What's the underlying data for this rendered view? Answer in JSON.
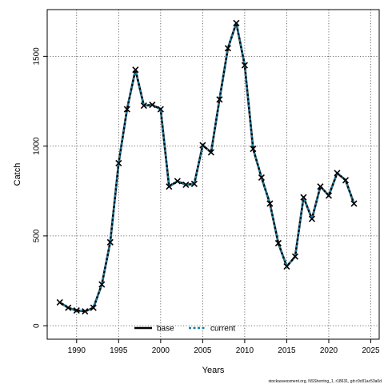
{
  "chart_data": {
    "type": "line",
    "title": "",
    "xlabel": "Years",
    "ylabel": "Catch",
    "xlim": [
      1986.5,
      2026.0
    ],
    "ylim": [
      -75,
      1760
    ],
    "x_ticks": [
      1990,
      1995,
      2000,
      2005,
      2010,
      2015,
      2020,
      2025
    ],
    "y_ticks": [
      0,
      500,
      1000,
      1500
    ],
    "grid": true,
    "legend_position": "bottom-center",
    "x": [
      1988,
      1989,
      1990,
      1991,
      1992,
      1993,
      1994,
      1995,
      1996,
      1997,
      1998,
      1999,
      2000,
      2001,
      2002,
      2003,
      2004,
      2005,
      2006,
      2007,
      2008,
      2009,
      2010,
      2011,
      2012,
      2013,
      2014,
      2015,
      2016,
      2017,
      2018,
      2019,
      2020,
      2021,
      2022,
      2023
    ],
    "series": [
      {
        "name": "base",
        "color": "#000000",
        "style": "solid",
        "marker": "x",
        "values": [
          130,
          100,
          85,
          80,
          100,
          230,
          465,
          905,
          1205,
          1425,
          1225,
          1230,
          1205,
          775,
          805,
          785,
          790,
          1005,
          965,
          1260,
          1545,
          1685,
          1450,
          985,
          825,
          680,
          460,
          330,
          385,
          715,
          595,
          775,
          725,
          850,
          810,
          680
        ]
      },
      {
        "name": "current",
        "color": "#1a7fa8",
        "style": "dashed",
        "marker": "x",
        "values": [
          130,
          100,
          85,
          80,
          100,
          230,
          465,
          905,
          1205,
          1425,
          1225,
          1230,
          1205,
          775,
          805,
          785,
          790,
          1005,
          965,
          1260,
          1545,
          1685,
          1450,
          985,
          825,
          680,
          460,
          330,
          385,
          715,
          595,
          775,
          725,
          850,
          810,
          680
        ]
      }
    ]
  },
  "caption": "stockassessment.org, NSSherring_1, r18631, git:c9c81ac53a0d"
}
